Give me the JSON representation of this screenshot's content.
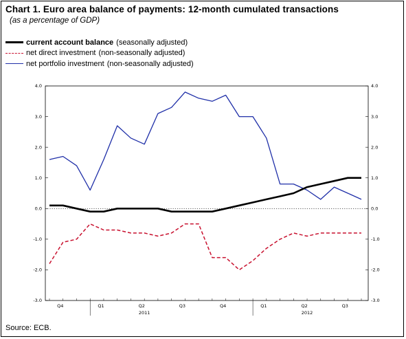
{
  "title": "Chart 1. Euro area balance of payments: 12-month cumulated transactions",
  "subtitle": "(as a percentage of GDP)",
  "source": "Source: ECB.",
  "legend": [
    {
      "name": "current account balance",
      "note": "(seasonally adjusted)",
      "bold": true
    },
    {
      "name": "net direct investment",
      "note": "(non-seasonally adjusted)",
      "bold": false
    },
    {
      "name": "net portfolio investment",
      "note": "(non-seasonally adjusted)",
      "bold": false
    }
  ],
  "chart_data": {
    "type": "line",
    "ylim": [
      -3.0,
      4.0
    ],
    "yticks": [
      "4.0",
      "3.0",
      "2.0",
      "1.0",
      "0.0",
      "-1.0",
      "-2.0",
      "-3.0"
    ],
    "x_months": [
      "Oct 2010",
      "Nov 2010",
      "Dec 2010",
      "Jan 2011",
      "Feb 2011",
      "Mar 2011",
      "Apr 2011",
      "May 2011",
      "Jun 2011",
      "Jul 2011",
      "Aug 2011",
      "Sep 2011",
      "Oct 2011",
      "Nov 2011",
      "Dec 2011",
      "Jan 2012",
      "Feb 2012",
      "Mar 2012",
      "Apr 2012",
      "May 2012",
      "Jun 2012",
      "Jul 2012",
      "Aug 2012",
      "Sep 2012"
    ],
    "quarter_labels": [
      "Q4",
      "Q1",
      "Q2",
      "Q3",
      "Q4",
      "Q1",
      "Q2",
      "Q3"
    ],
    "year_labels": [
      {
        "label": "2011",
        "month_index": 7
      },
      {
        "label": "2012",
        "month_index": 19
      }
    ],
    "reference_line": 0.0,
    "series": [
      {
        "name": "net portfolio investment",
        "color": "#1f2fa8",
        "style": "solid",
        "values": [
          1.6,
          1.7,
          1.4,
          0.6,
          1.6,
          2.7,
          2.3,
          2.1,
          3.1,
          3.3,
          3.8,
          3.6,
          3.5,
          3.7,
          3.0,
          3.0,
          2.3,
          0.8,
          0.8,
          0.6,
          0.3,
          0.7,
          0.5,
          0.3
        ]
      },
      {
        "name": "current account balance",
        "color": "#000000",
        "style": "solid-thick",
        "values": [
          0.1,
          0.1,
          0.0,
          -0.1,
          -0.1,
          0.0,
          0.0,
          0.0,
          0.0,
          -0.1,
          -0.1,
          -0.1,
          -0.1,
          0.0,
          0.1,
          0.2,
          0.3,
          0.4,
          0.5,
          0.7,
          0.8,
          0.9,
          1.0,
          1.0
        ]
      },
      {
        "name": "net direct investment",
        "color": "#c8102e",
        "style": "dashed",
        "values": [
          -1.8,
          -1.1,
          -1.0,
          -0.5,
          -0.7,
          -0.7,
          -0.8,
          -0.8,
          -0.9,
          -0.8,
          -0.5,
          -0.5,
          -1.6,
          -1.6,
          -2.0,
          -1.7,
          -1.3,
          -1.0,
          -0.8,
          -0.9,
          -0.8,
          -0.8,
          -0.8,
          -0.8
        ]
      }
    ],
    "grid": false
  }
}
